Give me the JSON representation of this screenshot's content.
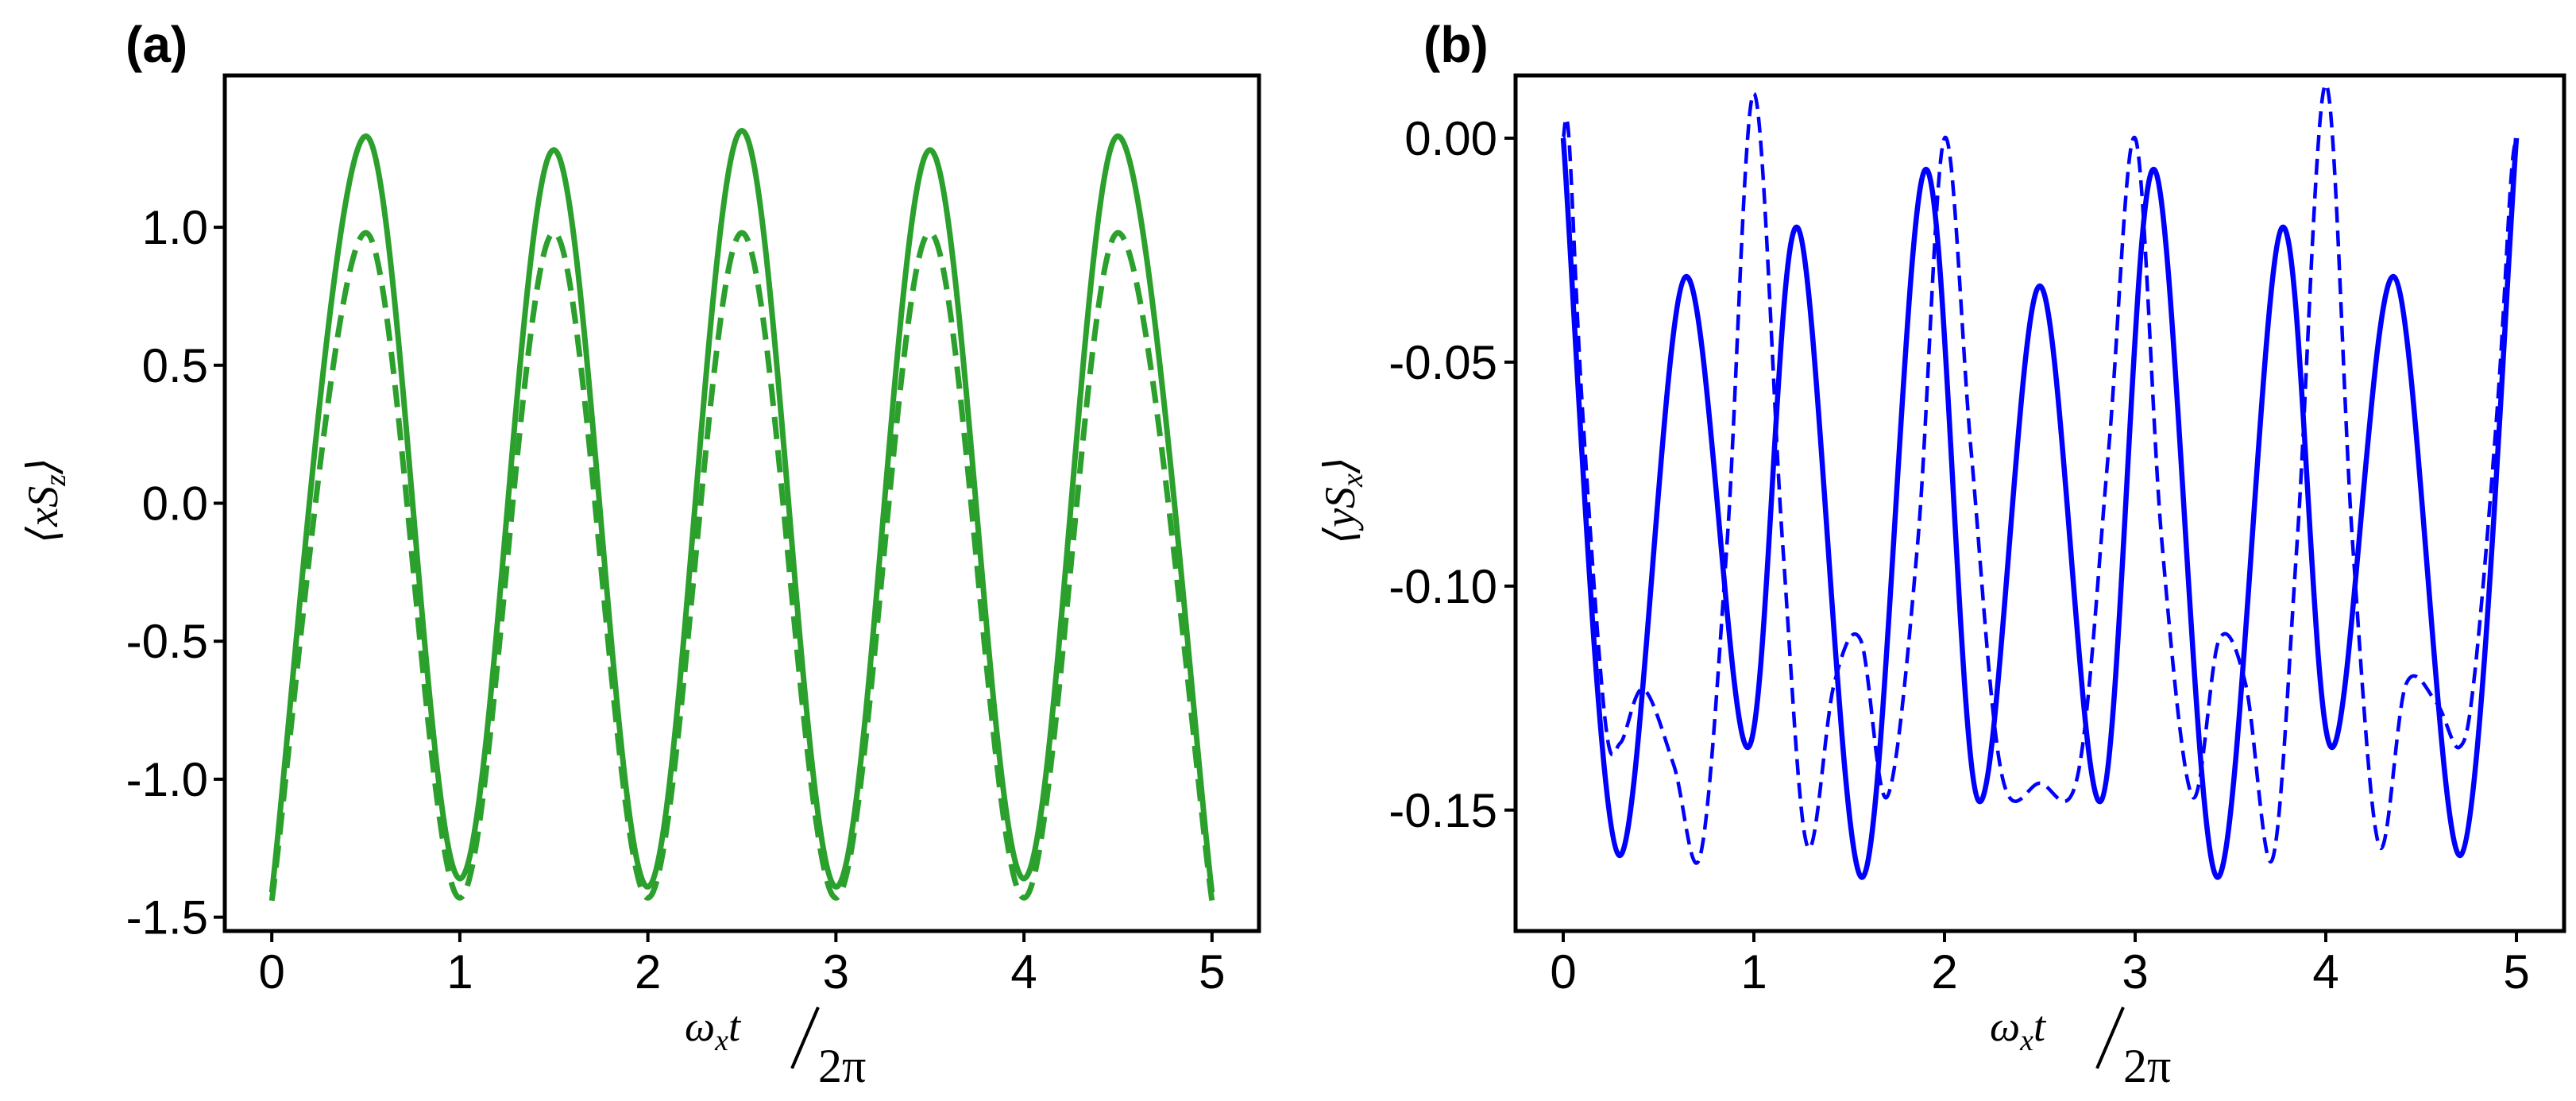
{
  "chart_data": [
    {
      "panel": "(a)",
      "type": "line",
      "title": "",
      "xlabel": "ωxt⁄2π",
      "ylabel": "⟨xSz⟩",
      "xlim": [
        -0.25,
        5.25
      ],
      "ylim": [
        -1.55,
        1.55
      ],
      "xticks": [
        0,
        1,
        2,
        3,
        4,
        5
      ],
      "xtick_labels": [
        "0",
        "1",
        "2",
        "3",
        "4",
        "5"
      ],
      "yticks": [
        -1.5,
        -1.0,
        -0.5,
        0.0,
        0.5,
        1.0
      ],
      "ytick_labels": [
        "-1.5",
        "-1.0",
        "-0.5",
        "0.0",
        "0.5",
        "1.0"
      ],
      "grid": false,
      "series": [
        {
          "name": "solid",
          "style": "solid",
          "color": "#2ca02c",
          "x": [
            0,
            0.5,
            1.0,
            1.5,
            2.0,
            2.5,
            3.0,
            3.5,
            4.0,
            4.5,
            5.0
          ],
          "y": [
            -1.41,
            1.33,
            -1.36,
            1.28,
            -1.39,
            1.35,
            -1.39,
            1.28,
            -1.36,
            1.33,
            -1.41
          ]
        },
        {
          "name": "dashed",
          "style": "dashed",
          "color": "#2ca02c",
          "x": [
            0,
            0.5,
            1.0,
            1.5,
            2.0,
            2.5,
            3.0,
            3.5,
            4.0,
            4.5,
            5.0
          ],
          "y": [
            -1.44,
            0.98,
            -1.43,
            0.98,
            -1.43,
            0.98,
            -1.43,
            0.98,
            -1.43,
            0.98,
            -1.44
          ]
        }
      ]
    },
    {
      "panel": "(b)",
      "type": "line",
      "title": "",
      "xlabel": "ωxt⁄2π",
      "ylabel": "⟨ySx⟩",
      "xlim": [
        -0.25,
        5.25
      ],
      "ylim": [
        -0.177,
        0.014
      ],
      "xticks": [
        0,
        1,
        2,
        3,
        4,
        5
      ],
      "xtick_labels": [
        "0",
        "1",
        "2",
        "3",
        "4",
        "5"
      ],
      "yticks": [
        -0.15,
        -0.1,
        -0.05,
        0.0
      ],
      "ytick_labels": [
        "-0.15",
        "-0.10",
        "-0.05",
        "0.00"
      ],
      "grid": false,
      "series": [
        {
          "name": "solid",
          "style": "solid",
          "color": "#0000ff",
          "x": [
            0,
            0.29,
            0.64,
            0.97,
            1.23,
            1.57,
            1.9,
            2.18,
            2.5,
            2.82,
            3.1,
            3.43,
            3.77,
            4.03,
            4.36,
            4.71,
            5.0
          ],
          "y": [
            0.0,
            -0.16,
            -0.031,
            -0.136,
            -0.02,
            -0.165,
            -0.007,
            -0.148,
            -0.033,
            -0.148,
            -0.007,
            -0.165,
            -0.02,
            -0.136,
            -0.031,
            -0.16,
            0.0
          ]
        },
        {
          "name": "dashed",
          "style": "dashed",
          "color": "#0000ff",
          "x": [
            0,
            0.03,
            0.1,
            0.22,
            0.3,
            0.42,
            0.58,
            0.72,
            0.86,
            1.0,
            1.15,
            1.28,
            1.42,
            1.56,
            1.7,
            1.86,
            2.0,
            2.14,
            2.3,
            2.5,
            2.7,
            2.86,
            3.0,
            3.14,
            3.3,
            3.44,
            3.58,
            3.72,
            3.85,
            4.0,
            4.14,
            4.28,
            4.42,
            4.58,
            4.7,
            4.78,
            4.9,
            4.97,
            5.0
          ],
          "y": [
            0.0,
            0.0,
            -0.06,
            -0.13,
            -0.135,
            -0.123,
            -0.14,
            -0.16,
            -0.09,
            0.01,
            -0.09,
            -0.158,
            -0.122,
            -0.112,
            -0.147,
            -0.09,
            0.0,
            -0.07,
            -0.142,
            -0.144,
            -0.142,
            -0.07,
            0.0,
            -0.09,
            -0.147,
            -0.112,
            -0.122,
            -0.161,
            -0.09,
            0.012,
            -0.09,
            -0.158,
            -0.122,
            -0.126,
            -0.136,
            -0.12,
            -0.06,
            -0.01,
            0.0
          ]
        }
      ]
    }
  ]
}
